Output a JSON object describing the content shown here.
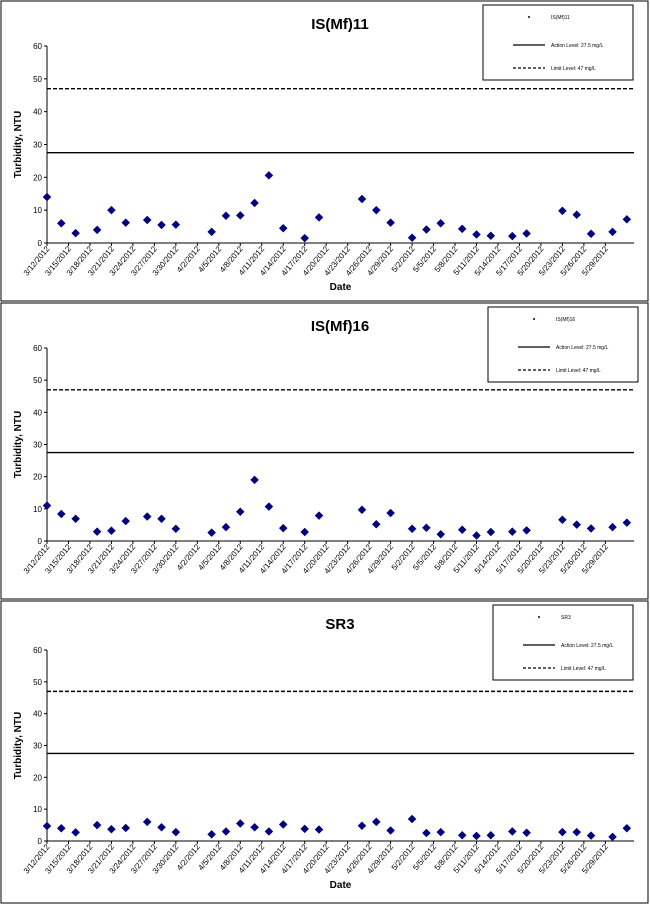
{
  "chart_data": [
    {
      "type": "scatter",
      "title": "IS(Mf)11",
      "xlabel": "Date",
      "ylabel": "Turbidity, NTU",
      "ylim": [
        0,
        60
      ],
      "yticks": [
        0,
        10,
        20,
        30,
        40,
        50,
        60
      ],
      "x_tick_labels": [
        "3/12/2012",
        "3/15/2012",
        "3/18/2012",
        "3/21/2012",
        "3/24/2012",
        "3/27/2012",
        "3/30/2012",
        "4/2/2012",
        "4/5/2012",
        "4/8/2012",
        "4/11/2012",
        "4/14/2012",
        "4/17/2012",
        "4/20/2012",
        "4/23/2012",
        "4/26/2012",
        "4/29/2012",
        "5/2/2012",
        "5/5/2012",
        "5/8/2012",
        "5/11/2012",
        "5/14/2012",
        "5/17/2012",
        "5/20/2012",
        "5/23/2012",
        "5/26/2012",
        "5/29/2012"
      ],
      "grid": false,
      "legend_position": "top-right",
      "legend": [
        "IS(Mf)11",
        "Action Level: 27.5 mg/L",
        "Limit Level: 47 mg/L"
      ],
      "reference_lines": [
        {
          "name": "Action Level: 27.5 mg/L",
          "value": 27.5,
          "style": "solid"
        },
        {
          "name": "Limit Level: 47 mg/L",
          "value": 47,
          "style": "dashed"
        }
      ],
      "series": [
        {
          "name": "IS(Mf)11",
          "color": "#000080",
          "points": [
            [
              "3/12/2012",
              14
            ],
            [
              "3/14/2012",
              6
            ],
            [
              "3/16/2012",
              3
            ],
            [
              "3/19/2012",
              4
            ],
            [
              "3/21/2012",
              10
            ],
            [
              "3/23/2012",
              6.2
            ],
            [
              "3/26/2012",
              7
            ],
            [
              "3/28/2012",
              5.5
            ],
            [
              "3/30/2012",
              5.6
            ],
            [
              "4/4/2012",
              3.4
            ],
            [
              "4/6/2012",
              8.3
            ],
            [
              "4/8/2012",
              8.4
            ],
            [
              "4/10/2012",
              12.2
            ],
            [
              "4/12/2012",
              20.6
            ],
            [
              "4/14/2012",
              4.5
            ],
            [
              "4/17/2012",
              1.5
            ],
            [
              "4/19/2012",
              7.8
            ],
            [
              "4/25/2012",
              13.4
            ],
            [
              "4/27/2012",
              10
            ],
            [
              "4/29/2012",
              6.2
            ],
            [
              "5/2/2012",
              1.6
            ],
            [
              "5/4/2012",
              4.1
            ],
            [
              "5/6/2012",
              6
            ],
            [
              "5/9/2012",
              4.3
            ],
            [
              "5/11/2012",
              2.6
            ],
            [
              "5/13/2012",
              2.2
            ],
            [
              "5/16/2012",
              2.1
            ],
            [
              "5/18/2012",
              2.9
            ],
            [
              "5/23/2012",
              9.8
            ],
            [
              "5/25/2012",
              8.6
            ],
            [
              "5/27/2012",
              2.8
            ],
            [
              "5/30/2012",
              3.4
            ],
            [
              "6/1/2012",
              7.2
            ]
          ]
        }
      ]
    },
    {
      "type": "scatter",
      "title": "IS(Mf)16",
      "xlabel": "",
      "ylabel": "Turbidity, NTU",
      "ylim": [
        0,
        60
      ],
      "yticks": [
        0,
        10,
        20,
        30,
        40,
        50,
        60
      ],
      "x_tick_labels": [
        "3/12/2012",
        "3/15/2012",
        "3/18/2012",
        "3/21/2012",
        "3/24/2012",
        "3/27/2012",
        "3/30/2012",
        "4/2/2012",
        "4/5/2012",
        "4/8/2012",
        "4/11/2012",
        "4/14/2012",
        "4/17/2012",
        "4/20/2012",
        "4/23/2012",
        "4/26/2012",
        "4/29/2012",
        "5/2/2012",
        "5/5/2012",
        "5/8/2012",
        "5/11/2012",
        "5/14/2012",
        "5/17/2012",
        "5/20/2012",
        "5/23/2012",
        "5/26/2012",
        "5/29/2012"
      ],
      "grid": false,
      "legend_position": "top-right",
      "legend": [
        "IS(Mf)16",
        "Action Level: 27.5 mg/L",
        "Limit Level: 47 mg/L"
      ],
      "reference_lines": [
        {
          "name": "Action Level: 27.5 mg/L",
          "value": 27.5,
          "style": "solid"
        },
        {
          "name": "Limit Level: 47 mg/L",
          "value": 47,
          "style": "dashed"
        }
      ],
      "series": [
        {
          "name": "IS(Mf)16",
          "color": "#000080",
          "points": [
            [
              "3/12/2012",
              11
            ],
            [
              "3/14/2012",
              8.4
            ],
            [
              "3/16/2012",
              6.9
            ],
            [
              "3/19/2012",
              2.9
            ],
            [
              "3/21/2012",
              3.2
            ],
            [
              "3/23/2012",
              6.2
            ],
            [
              "3/26/2012",
              7.6
            ],
            [
              "3/28/2012",
              6.9
            ],
            [
              "3/30/2012",
              3.8
            ],
            [
              "4/4/2012",
              2.6
            ],
            [
              "4/6/2012",
              4.3
            ],
            [
              "4/8/2012",
              9.1
            ],
            [
              "4/10/2012",
              19
            ],
            [
              "4/12/2012",
              10.7
            ],
            [
              "4/14/2012",
              4
            ],
            [
              "4/17/2012",
              2.8
            ],
            [
              "4/19/2012",
              7.9
            ],
            [
              "4/25/2012",
              9.7
            ],
            [
              "4/27/2012",
              5.2
            ],
            [
              "4/29/2012",
              8.7
            ],
            [
              "5/2/2012",
              3.8
            ],
            [
              "5/4/2012",
              4.1
            ],
            [
              "5/6/2012",
              2.1
            ],
            [
              "5/9/2012",
              3.5
            ],
            [
              "5/11/2012",
              1.7
            ],
            [
              "5/13/2012",
              2.8
            ],
            [
              "5/16/2012",
              2.9
            ],
            [
              "5/18/2012",
              3.3
            ],
            [
              "5/23/2012",
              6.6
            ],
            [
              "5/25/2012",
              5.1
            ],
            [
              "5/27/2012",
              3.9
            ],
            [
              "5/30/2012",
              4.3
            ],
            [
              "6/1/2012",
              5.7
            ]
          ]
        }
      ]
    },
    {
      "type": "scatter",
      "title": "SR3",
      "xlabel": "Date",
      "ylabel": "Turbidity, NTU",
      "ylim": [
        0,
        60
      ],
      "yticks": [
        0,
        10,
        20,
        30,
        40,
        50,
        60
      ],
      "x_tick_labels": [
        "3/12/2012",
        "3/15/2012",
        "3/18/2012",
        "3/21/2012",
        "3/24/2012",
        "3/27/2012",
        "3/30/2012",
        "4/2/2012",
        "4/5/2012",
        "4/8/2012",
        "4/11/2012",
        "4/14/2012",
        "4/17/2012",
        "4/20/2012",
        "4/23/2012",
        "4/26/2012",
        "4/29/2012",
        "5/2/2012",
        "5/5/2012",
        "5/8/2012",
        "5/11/2012",
        "5/14/2012",
        "5/17/2012",
        "5/20/2012",
        "5/23/2012",
        "5/26/2012",
        "5/29/2012"
      ],
      "grid": false,
      "legend_position": "top-right",
      "legend": [
        "SR3",
        "Action Level: 27.5 mg/L",
        "Limit Level: 47 mg/L"
      ],
      "reference_lines": [
        {
          "name": "Action Level: 27.5 mg/L",
          "value": 27.5,
          "style": "solid"
        },
        {
          "name": "Limit Level: 47 mg/L",
          "value": 47,
          "style": "dashed"
        }
      ],
      "series": [
        {
          "name": "SR3",
          "color": "#000080",
          "points": [
            [
              "3/12/2012",
              4.7
            ],
            [
              "3/14/2012",
              4
            ],
            [
              "3/16/2012",
              2.7
            ],
            [
              "3/19/2012",
              5
            ],
            [
              "3/21/2012",
              3.7
            ],
            [
              "3/23/2012",
              4.1
            ],
            [
              "3/26/2012",
              6
            ],
            [
              "3/28/2012",
              4.3
            ],
            [
              "3/30/2012",
              2.8
            ],
            [
              "4/4/2012",
              2.1
            ],
            [
              "4/6/2012",
              3
            ],
            [
              "4/8/2012",
              5.5
            ],
            [
              "4/10/2012",
              4.3
            ],
            [
              "4/12/2012",
              3
            ],
            [
              "4/14/2012",
              5.2
            ],
            [
              "4/17/2012",
              3.8
            ],
            [
              "4/19/2012",
              3.6
            ],
            [
              "4/25/2012",
              4.8
            ],
            [
              "4/27/2012",
              6
            ],
            [
              "4/29/2012",
              3.3
            ],
            [
              "5/2/2012",
              6.9
            ],
            [
              "5/4/2012",
              2.5
            ],
            [
              "5/6/2012",
              2.8
            ],
            [
              "5/9/2012",
              1.8
            ],
            [
              "5/11/2012",
              1.6
            ],
            [
              "5/13/2012",
              1.8
            ],
            [
              "5/16/2012",
              3
            ],
            [
              "5/18/2012",
              2.6
            ],
            [
              "5/23/2012",
              2.8
            ],
            [
              "5/25/2012",
              2.8
            ],
            [
              "5/27/2012",
              1.7
            ],
            [
              "5/30/2012",
              1.3
            ],
            [
              "6/1/2012",
              4
            ]
          ]
        }
      ]
    }
  ]
}
